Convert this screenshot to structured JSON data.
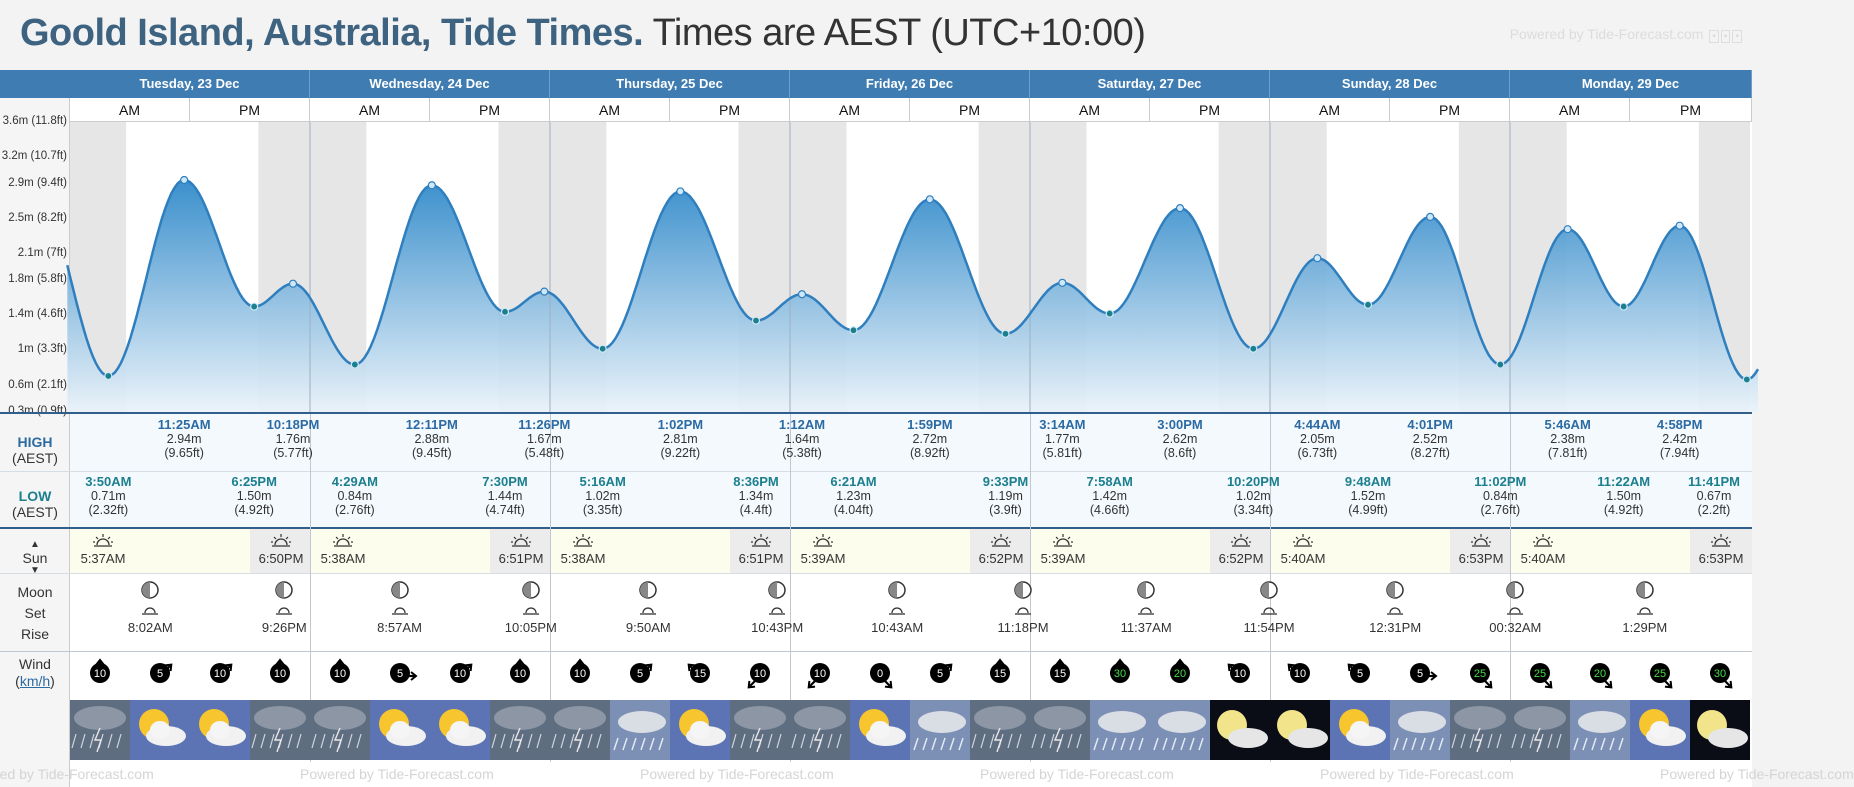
{
  "header": {
    "title_main": "Goold Island, Australia, Tide Times.",
    "title_tz": " Times are AEST (UTC+10:00)",
    "powered_by": "Powered by Tide-Forecast.com"
  },
  "labels": {
    "am": "AM",
    "pm": "PM",
    "high": "HIGH",
    "low": "LOW",
    "aest": "(AEST)",
    "sun": "Sun",
    "moon": "Moon",
    "set": "Set",
    "rise": "Rise",
    "wind": "Wind",
    "wind_unit": "km/h",
    "powered_repeat": "Powered by Tide-Forecast.com"
  },
  "days": [
    {
      "name": "Tuesday, 23 Dec"
    },
    {
      "name": "Wednesday, 24 Dec"
    },
    {
      "name": "Thursday, 25 Dec"
    },
    {
      "name": "Friday, 26 Dec"
    },
    {
      "name": "Saturday, 27 Dec"
    },
    {
      "name": "Sunday, 28 Dec"
    },
    {
      "name": "Monday, 29 Dec"
    }
  ],
  "y_axis_labels": [
    "3.6m (11.8ft)",
    "3.2m (10.7ft)",
    "2.9m (9.4ft)",
    "2.5m (8.2ft)",
    "2.1m (7ft)",
    "1.8m (5.8ft)",
    "1.4m (4.6ft)",
    "1m (3.3ft)",
    "0.6m (2.1ft)",
    "0.3m (0.9ft)"
  ],
  "chart_data": {
    "type": "area",
    "ylabel": "",
    "y_unit": "m",
    "ylim": [
      0.3,
      3.6
    ],
    "series": [
      {
        "values": [
          {
            "day": 0,
            "time": "3:50AM",
            "height": 0.71
          },
          {
            "day": 0,
            "time": "11:25AM",
            "height": 2.94
          },
          {
            "day": 0,
            "time": "6:25PM",
            "height": 1.5
          },
          {
            "day": 0,
            "time": "10:18PM",
            "height": 1.76
          },
          {
            "day": 1,
            "time": "4:29AM",
            "height": 0.84
          },
          {
            "day": 1,
            "time": "12:11PM",
            "height": 2.88
          },
          {
            "day": 1,
            "time": "7:30PM",
            "height": 1.44
          },
          {
            "day": 1,
            "time": "11:26PM",
            "height": 1.67
          },
          {
            "day": 2,
            "time": "5:16AM",
            "height": 1.02
          },
          {
            "day": 2,
            "time": "1:02PM",
            "height": 2.81
          },
          {
            "day": 2,
            "time": "8:36PM",
            "height": 1.34
          },
          {
            "day": 3,
            "time": "1:12AM",
            "height": 1.64
          },
          {
            "day": 3,
            "time": "6:21AM",
            "height": 1.23
          },
          {
            "day": 3,
            "time": "1:59PM",
            "height": 2.72
          },
          {
            "day": 3,
            "time": "9:33PM",
            "height": 1.19
          },
          {
            "day": 4,
            "time": "3:14AM",
            "height": 1.77
          },
          {
            "day": 4,
            "time": "7:58AM",
            "height": 1.42
          },
          {
            "day": 4,
            "time": "3:00PM",
            "height": 2.62
          },
          {
            "day": 4,
            "time": "10:20PM",
            "height": 1.02
          },
          {
            "day": 5,
            "time": "4:44AM",
            "height": 2.05
          },
          {
            "day": 5,
            "time": "9:48AM",
            "height": 1.52
          },
          {
            "day": 5,
            "time": "4:01PM",
            "height": 2.52
          },
          {
            "day": 5,
            "time": "11:02PM",
            "height": 0.84
          },
          {
            "day": 6,
            "time": "5:46AM",
            "height": 2.38
          },
          {
            "day": 6,
            "time": "11:22AM",
            "height": 1.5
          },
          {
            "day": 6,
            "time": "4:58PM",
            "height": 2.42
          },
          {
            "day": 6,
            "time": "11:41PM",
            "height": 0.67
          }
        ]
      }
    ]
  },
  "highs": [
    {
      "day": 0,
      "time": "11:25AM",
      "m": "2.94m",
      "ft": "(9.65ft)"
    },
    {
      "day": 0,
      "time": "10:18PM",
      "m": "1.76m",
      "ft": "(5.77ft)"
    },
    {
      "day": 1,
      "time": "12:11PM",
      "m": "2.88m",
      "ft": "(9.45ft)"
    },
    {
      "day": 1,
      "time": "11:26PM",
      "m": "1.67m",
      "ft": "(5.48ft)"
    },
    {
      "day": 2,
      "time": "1:02PM",
      "m": "2.81m",
      "ft": "(9.22ft)"
    },
    {
      "day": 3,
      "time": "1:12AM",
      "m": "1.64m",
      "ft": "(5.38ft)"
    },
    {
      "day": 3,
      "time": "1:59PM",
      "m": "2.72m",
      "ft": "(8.92ft)"
    },
    {
      "day": 4,
      "time": "3:14AM",
      "m": "1.77m",
      "ft": "(5.81ft)"
    },
    {
      "day": 4,
      "time": "3:00PM",
      "m": "2.62m",
      "ft": "(8.6ft)"
    },
    {
      "day": 5,
      "time": "4:44AM",
      "m": "2.05m",
      "ft": "(6.73ft)"
    },
    {
      "day": 5,
      "time": "4:01PM",
      "m": "2.52m",
      "ft": "(8.27ft)"
    },
    {
      "day": 6,
      "time": "5:46AM",
      "m": "2.38m",
      "ft": "(7.81ft)"
    },
    {
      "day": 6,
      "time": "4:58PM",
      "m": "2.42m",
      "ft": "(7.94ft)"
    }
  ],
  "lows": [
    {
      "day": 0,
      "time": "3:50AM",
      "m": "0.71m",
      "ft": "(2.32ft)"
    },
    {
      "day": 0,
      "time": "6:25PM",
      "m": "1.50m",
      "ft": "(4.92ft)"
    },
    {
      "day": 1,
      "time": "4:29AM",
      "m": "0.84m",
      "ft": "(2.76ft)"
    },
    {
      "day": 1,
      "time": "7:30PM",
      "m": "1.44m",
      "ft": "(4.74ft)"
    },
    {
      "day": 2,
      "time": "5:16AM",
      "m": "1.02m",
      "ft": "(3.35ft)"
    },
    {
      "day": 2,
      "time": "8:36PM",
      "m": "1.34m",
      "ft": "(4.4ft)"
    },
    {
      "day": 3,
      "time": "6:21AM",
      "m": "1.23m",
      "ft": "(4.04ft)"
    },
    {
      "day": 3,
      "time": "9:33PM",
      "m": "1.19m",
      "ft": "(3.9ft)"
    },
    {
      "day": 4,
      "time": "7:58AM",
      "m": "1.42m",
      "ft": "(4.66ft)"
    },
    {
      "day": 4,
      "time": "10:20PM",
      "m": "1.02m",
      "ft": "(3.34ft)"
    },
    {
      "day": 5,
      "time": "9:48AM",
      "m": "1.52m",
      "ft": "(4.99ft)"
    },
    {
      "day": 5,
      "time": "11:02PM",
      "m": "0.84m",
      "ft": "(2.76ft)"
    },
    {
      "day": 6,
      "time": "11:22AM",
      "m": "1.50m",
      "ft": "(4.92ft)"
    },
    {
      "day": 6,
      "time": "11:41PM",
      "m": "0.67m",
      "ft": "(2.2ft)"
    }
  ],
  "sun": [
    {
      "day": 0,
      "rise": "5:37AM",
      "set": "6:50PM"
    },
    {
      "day": 1,
      "rise": "5:38AM",
      "set": "6:51PM"
    },
    {
      "day": 2,
      "rise": "5:38AM",
      "set": "6:51PM"
    },
    {
      "day": 3,
      "rise": "5:39AM",
      "set": "6:52PM"
    },
    {
      "day": 4,
      "rise": "5:39AM",
      "set": "6:52PM"
    },
    {
      "day": 5,
      "rise": "5:40AM",
      "set": "6:53PM"
    },
    {
      "day": 6,
      "rise": "5:40AM",
      "set": "6:53PM"
    }
  ],
  "moon": [
    {
      "day": 0,
      "time": "8:02AM",
      "kind": "rise"
    },
    {
      "day": 0,
      "time": "9:26PM",
      "kind": "set"
    },
    {
      "day": 1,
      "time": "8:57AM",
      "kind": "rise"
    },
    {
      "day": 1,
      "time": "10:05PM",
      "kind": "set"
    },
    {
      "day": 2,
      "time": "9:50AM",
      "kind": "rise"
    },
    {
      "day": 2,
      "time": "10:43PM",
      "kind": "set"
    },
    {
      "day": 3,
      "time": "10:43AM",
      "kind": "rise"
    },
    {
      "day": 3,
      "time": "11:18PM",
      "kind": "set"
    },
    {
      "day": 4,
      "time": "11:37AM",
      "kind": "rise"
    },
    {
      "day": 4,
      "time": "11:54PM",
      "kind": "set"
    },
    {
      "day": 5,
      "time": "12:31PM",
      "kind": "rise"
    },
    {
      "day": 6,
      "time": "00:32AM",
      "kind": "set"
    },
    {
      "day": 6,
      "time": "1:29PM",
      "kind": "rise"
    }
  ],
  "wind": [
    {
      "speed": "10",
      "dir": "s",
      "color": "#000000"
    },
    {
      "speed": "5",
      "dir": "sw",
      "color": "#000000"
    },
    {
      "speed": "10",
      "dir": "sw",
      "color": "#000000"
    },
    {
      "speed": "10",
      "dir": "s",
      "color": "#000000"
    },
    {
      "speed": "10",
      "dir": "s",
      "color": "#000000"
    },
    {
      "speed": "5",
      "dir": "w",
      "color": "#000000"
    },
    {
      "speed": "10",
      "dir": "sw",
      "color": "#000000"
    },
    {
      "speed": "10",
      "dir": "s",
      "color": "#000000"
    },
    {
      "speed": "10",
      "dir": "s",
      "color": "#000000"
    },
    {
      "speed": "5",
      "dir": "sw",
      "color": "#000000"
    },
    {
      "speed": "15",
      "dir": "se",
      "color": "#000000"
    },
    {
      "speed": "10",
      "dir": "ne",
      "color": "#000000"
    },
    {
      "speed": "10",
      "dir": "ne",
      "color": "#000000"
    },
    {
      "speed": "0",
      "dir": "nw",
      "color": "#000000"
    },
    {
      "speed": "5",
      "dir": "sw",
      "color": "#000000"
    },
    {
      "speed": "15",
      "dir": "s",
      "color": "#000000"
    },
    {
      "speed": "15",
      "dir": "s",
      "color": "#000000"
    },
    {
      "speed": "30",
      "dir": "s",
      "color": "#44dd44"
    },
    {
      "speed": "20",
      "dir": "s",
      "color": "#44dd44"
    },
    {
      "speed": "10",
      "dir": "se",
      "color": "#000000"
    },
    {
      "speed": "10",
      "dir": "se",
      "color": "#000000"
    },
    {
      "speed": "5",
      "dir": "se",
      "color": "#000000"
    },
    {
      "speed": "5",
      "dir": "w",
      "color": "#000000"
    },
    {
      "speed": "25",
      "dir": "nw",
      "color": "#44dd44"
    },
    {
      "speed": "25",
      "dir": "nw",
      "color": "#44dd44"
    },
    {
      "speed": "20",
      "dir": "nw",
      "color": "#44dd44"
    },
    {
      "speed": "25",
      "dir": "nw",
      "color": "#44dd44"
    },
    {
      "speed": "30",
      "dir": "nw",
      "color": "#44dd44"
    }
  ],
  "weather": [
    "storm-icon",
    "sun-cloud-icon",
    "sun-cloud-icon",
    "storm-icon",
    "storm-icon",
    "sun-cloud-icon",
    "sun-cloud-icon",
    "storm-icon",
    "storm-icon",
    "rain-icon",
    "sun-cloud-icon",
    "storm-icon",
    "storm-icon",
    "sun-cloud-icon",
    "rain-icon",
    "storm-icon",
    "storm-icon",
    "rain-icon",
    "rain-icon",
    "moon-cloud-icon",
    "moon-cloud-icon",
    "sun-cloud-icon",
    "rain-icon",
    "storm-icon",
    "storm-icon",
    "rain-icon",
    "sun-cloud-icon",
    "moon-cloud-icon"
  ]
}
